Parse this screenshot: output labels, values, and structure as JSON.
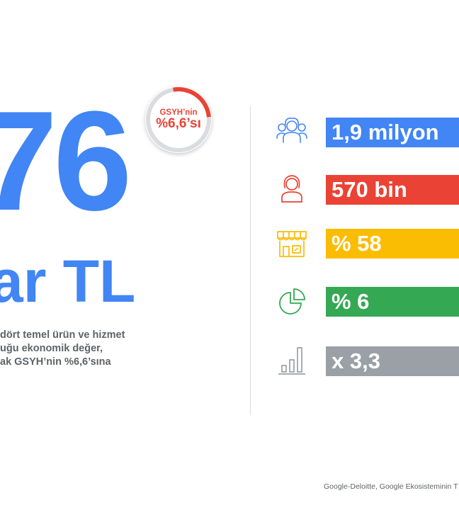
{
  "hero": {
    "big_number": "76",
    "unit": "ar TL",
    "badge_line1": "GSYH’nin",
    "badge_line2": "%6,6’sı",
    "badge_share": 0.066,
    "description": [
      "dört temel ürün ve hizmet",
      "uğu ekonomik değer,",
      "ak GSYH’nin %6,6’sına"
    ]
  },
  "stats": [
    {
      "icon": "people-group-icon",
      "value": "1,9 milyon",
      "color": "#4285f4"
    },
    {
      "icon": "person-icon",
      "value": "570 bin",
      "color": "#ea4335"
    },
    {
      "icon": "storefront-icon",
      "value": "% 58",
      "color": "#fbbc04"
    },
    {
      "icon": "pie-chart-icon",
      "value": "% 6",
      "color": "#34a853"
    },
    {
      "icon": "bar-chart-icon",
      "value": "x 3,3",
      "color": "#9aa0a6"
    }
  ],
  "footer": {
    "source": "Google-Deloitte, Google Ekosisteminin T"
  },
  "colors": {
    "blue": "#4285f4",
    "red": "#ea4335",
    "yellow": "#fbbc04",
    "green": "#34a853",
    "gray": "#9aa0a6",
    "text_gray": "#5f6368",
    "ring_gray": "#dadce0"
  }
}
